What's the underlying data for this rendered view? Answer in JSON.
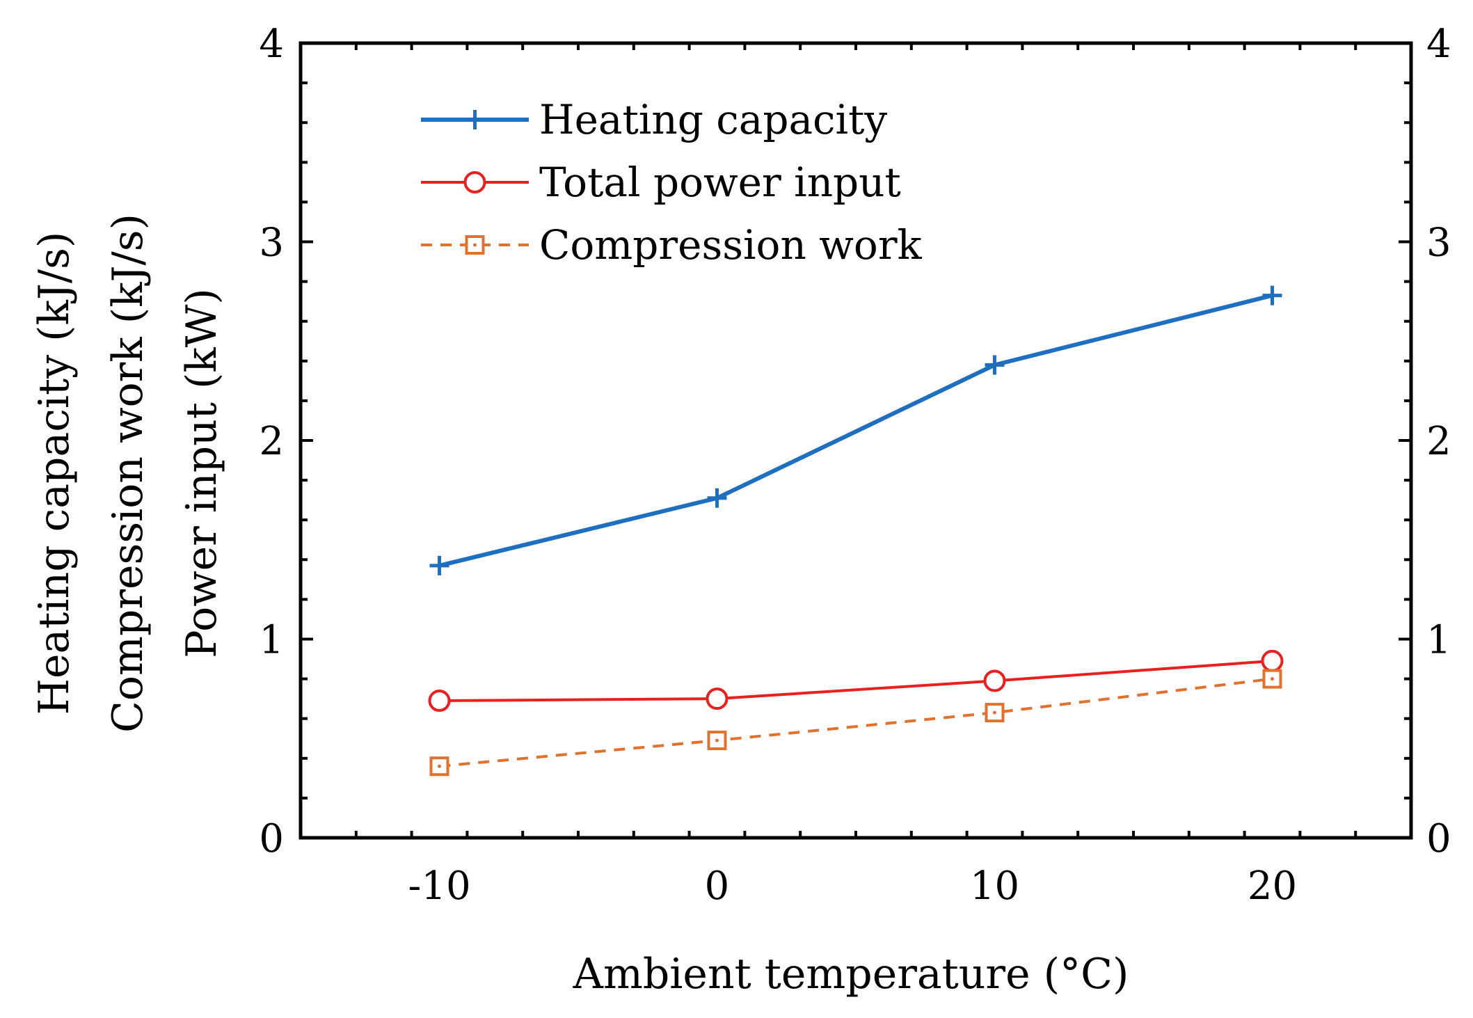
{
  "chart_data": {
    "type": "line",
    "title": "",
    "xlabel": "Ambient temperature (°C)",
    "ylabel_lines": [
      "Heating capacity (kJ/s)",
      "Compression work (kJ/s)",
      "Power input (kW)"
    ],
    "x": [
      -10,
      0,
      10,
      20
    ],
    "xlim": [
      -15,
      25
    ],
    "ylim": [
      0,
      4
    ],
    "xticks": [
      -10,
      0,
      10,
      20
    ],
    "yticks": [
      0,
      1,
      2,
      3,
      4
    ],
    "xtick_labels": [
      "-10",
      "0",
      "10",
      "20"
    ],
    "ytick_labels": [
      "0",
      "1",
      "2",
      "3",
      "4"
    ],
    "grid": false,
    "legend_position": "top-left",
    "series": [
      {
        "name": "Heating capacity",
        "values": [
          1.37,
          1.71,
          2.38,
          2.73
        ],
        "color": "#1f6fc0",
        "marker": "plus",
        "dashed": false
      },
      {
        "name": "Total power input",
        "values": [
          0.69,
          0.7,
          0.79,
          0.89
        ],
        "color": "#e8211f",
        "marker": "circle",
        "dashed": false
      },
      {
        "name": "Compression work",
        "values": [
          0.36,
          0.49,
          0.63,
          0.8
        ],
        "color": "#e0722e",
        "marker": "square",
        "dashed": true
      }
    ]
  }
}
